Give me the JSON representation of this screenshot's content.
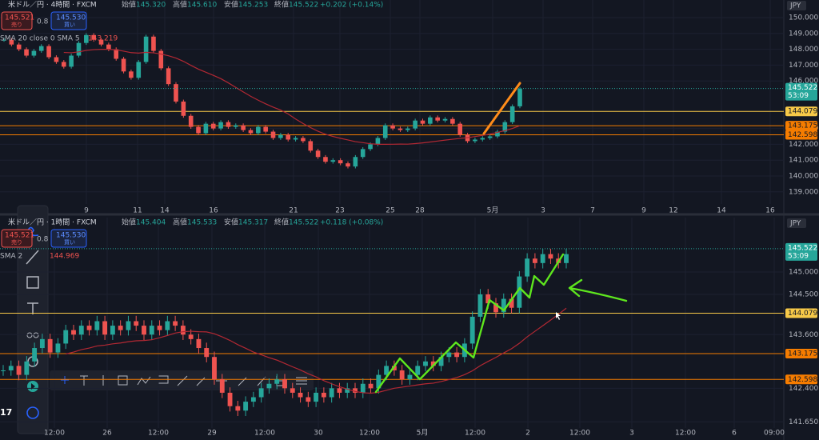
{
  "panels": [
    {
      "symbol": "米ドル／円 · 4時間 · FXCM",
      "ohlc": [
        "始値",
        "145.320",
        "高値",
        "145.610",
        "安値",
        "145.253",
        "終値",
        "145.522",
        "+0.202 (+0.14%)"
      ],
      "sell": {
        "price": "145.521",
        "label": "売り"
      },
      "spread": "0.8",
      "buy": {
        "price": "145.530",
        "label": "買い"
      },
      "indicator": {
        "name": "SMA 20 close 0 SMA 5",
        "value": "143.219"
      },
      "currency": "JPY",
      "price_ticks": [
        {
          "value": 150,
          "label": "150.000"
        },
        {
          "value": 149,
          "label": "149.000"
        },
        {
          "value": 148,
          "label": "148.000"
        },
        {
          "value": 147,
          "label": "147.000"
        },
        {
          "value": 146,
          "label": "146.000"
        },
        {
          "value": 143,
          "label": "143.000"
        },
        {
          "value": 142,
          "label": "142.000"
        },
        {
          "value": 141,
          "label": "141.000"
        },
        {
          "value": 140,
          "label": "140.000"
        },
        {
          "value": 139,
          "label": "139.000"
        }
      ],
      "levels": [
        {
          "value": 144.079,
          "label": "144.079"
        },
        {
          "value": 143.175,
          "label": "143.175"
        },
        {
          "value": 142.598,
          "label": "142.598"
        }
      ],
      "last": {
        "value": 145.522,
        "label": "145.522",
        "countdown": "53:09"
      },
      "x_labels": [
        "9",
        "11",
        "14",
        "16",
        "21",
        "23",
        "25",
        "28",
        "5月",
        "3",
        "7",
        "9",
        "12",
        "14",
        "16"
      ],
      "closes": [
        148.6,
        148.3,
        148.0,
        147.6,
        147.9,
        148.2,
        147.5,
        147.2,
        146.9,
        147.6,
        148.4,
        148.9,
        148.6,
        148.3,
        148.0,
        147.4,
        146.6,
        146.2,
        147.2,
        148.8,
        147.9,
        146.8,
        145.8,
        144.7,
        143.8,
        143.1,
        142.7,
        143.3,
        143.0,
        143.4,
        143.1,
        143.2,
        142.9,
        142.7,
        143.1,
        142.8,
        142.4,
        142.6,
        142.3,
        142.4,
        142.2,
        141.6,
        141.2,
        140.9,
        141.0,
        140.8,
        140.6,
        141.2,
        141.7,
        142.0,
        142.4,
        143.2,
        143.0,
        142.9,
        143.0,
        143.5,
        143.3,
        143.7,
        143.5,
        143.6,
        143.3,
        142.6,
        142.2,
        142.3,
        142.4,
        142.5,
        142.8,
        143.4,
        144.4,
        145.5
      ]
    },
    {
      "symbol": "米ドル／円 · 1時間 · FXCM",
      "ohlc": [
        "始値",
        "145.404",
        "高値",
        "145.533",
        "安値",
        "145.317",
        "終値",
        "145.522",
        "+0.118 (+0.08%)"
      ],
      "sell": {
        "price": "145.521",
        "label": "売り"
      },
      "spread": "0.8",
      "buy": {
        "price": "145.530",
        "label": "買い"
      },
      "indicator": {
        "name": "SMA 2",
        "value": "144.969"
      },
      "currency": "JPY",
      "price_ticks": [
        {
          "value": 145,
          "label": "145.000"
        },
        {
          "value": 144.5,
          "label": "144.500"
        },
        {
          "value": 143.6,
          "label": "143.600"
        },
        {
          "value": 142.4,
          "label": "142.400"
        },
        {
          "value": 141.65,
          "label": "141.650"
        }
      ],
      "levels": [
        {
          "value": 144.079,
          "label": "144.079"
        },
        {
          "value": 143.175,
          "label": "143.175"
        },
        {
          "value": 142.598,
          "label": "142.598"
        }
      ],
      "last": {
        "value": 145.522,
        "label": "145.522",
        "countdown": "53:09"
      },
      "x_labels": [
        "12:00",
        "26",
        "12:00",
        "29",
        "12:00",
        "30",
        "12:00",
        "5月",
        "12:00",
        "2",
        "12:00",
        "3",
        "12:00",
        "6",
        "09:00"
      ],
      "closes": [
        142.8,
        142.9,
        142.7,
        143.0,
        143.3,
        143.5,
        143.2,
        143.4,
        143.7,
        143.6,
        143.8,
        143.7,
        143.9,
        143.6,
        143.8,
        143.7,
        143.9,
        143.8,
        143.6,
        143.8,
        143.7,
        143.9,
        143.8,
        143.6,
        143.5,
        143.3,
        143.1,
        142.6,
        142.3,
        142.0,
        141.9,
        142.1,
        142.2,
        142.4,
        142.5,
        142.6,
        142.4,
        142.3,
        142.2,
        142.1,
        142.3,
        142.2,
        142.4,
        142.3,
        142.4,
        142.3,
        142.5,
        142.4,
        142.7,
        142.9,
        142.8,
        142.6,
        142.7,
        142.9,
        143.0,
        142.9,
        143.1,
        143.2,
        143.1,
        143.4,
        144.0,
        144.5,
        144.3,
        144.1,
        144.4,
        144.2,
        144.9,
        145.3,
        145.2,
        145.4,
        145.3,
        145.2,
        145.4
      ]
    }
  ],
  "toolbar_tip": "17"
}
